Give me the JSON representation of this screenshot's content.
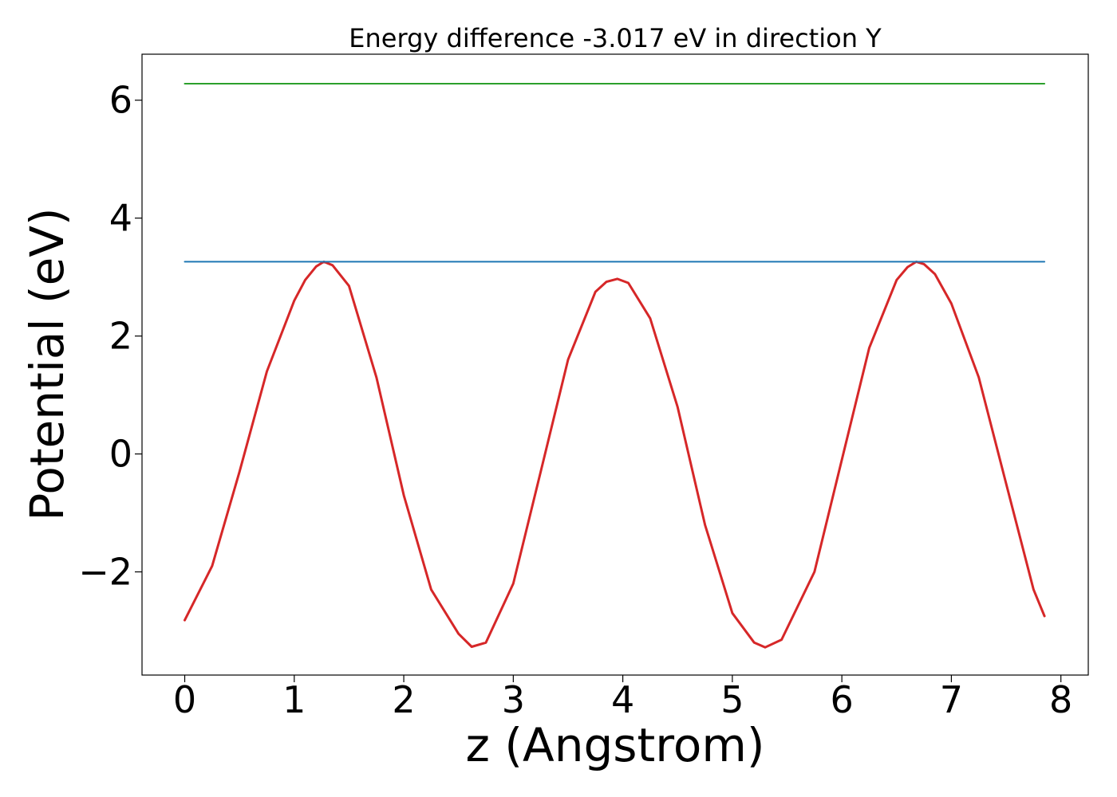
{
  "chart_data": {
    "type": "line",
    "title": "Energy difference -3.017 eV in direction Y",
    "xlabel": "z (Angstrom)",
    "ylabel": "Potential (eV)",
    "xlim": [
      -0.39,
      8.25
    ],
    "ylim": [
      -3.75,
      6.78
    ],
    "xticks": [
      0,
      1,
      2,
      3,
      4,
      5,
      6,
      7,
      8
    ],
    "xtick_labels": [
      "0",
      "1",
      "2",
      "3",
      "4",
      "5",
      "6",
      "7",
      "8"
    ],
    "yticks": [
      -2,
      0,
      2,
      4,
      6
    ],
    "ytick_labels": [
      "−2",
      "0",
      "2",
      "4",
      "6"
    ],
    "grid": false,
    "legend": "none",
    "series": [
      {
        "color": "#d62728",
        "x": [
          0,
          0.25,
          0.5,
          0.75,
          1.0,
          1.1,
          1.2,
          1.27,
          1.35,
          1.5,
          1.75,
          2.0,
          2.25,
          2.5,
          2.62,
          2.75,
          3.0,
          3.25,
          3.5,
          3.75,
          3.85,
          3.95,
          4.05,
          4.25,
          4.5,
          4.75,
          5.0,
          5.2,
          5.3,
          5.45,
          5.75,
          6.0,
          6.25,
          6.5,
          6.6,
          6.68,
          6.75,
          6.85,
          7.0,
          7.25,
          7.5,
          7.75,
          7.85
        ],
        "y": [
          -2.82,
          -1.9,
          -0.3,
          1.4,
          2.6,
          2.95,
          3.18,
          3.26,
          3.2,
          2.85,
          1.3,
          -0.7,
          -2.3,
          -3.05,
          -3.27,
          -3.2,
          -2.2,
          -0.3,
          1.6,
          2.75,
          2.92,
          2.97,
          2.9,
          2.3,
          0.8,
          -1.2,
          -2.7,
          -3.2,
          -3.28,
          -3.15,
          -2.0,
          -0.1,
          1.8,
          2.95,
          3.17,
          3.26,
          3.22,
          3.05,
          2.55,
          1.3,
          -0.5,
          -2.3,
          -2.75
        ]
      },
      {
        "color": "#1f77b4",
        "x": [
          0,
          7.85
        ],
        "y": [
          3.26,
          3.26
        ]
      },
      {
        "color": "#2ca02c",
        "x": [
          0,
          7.85
        ],
        "y": [
          6.28,
          6.28
        ]
      }
    ]
  }
}
